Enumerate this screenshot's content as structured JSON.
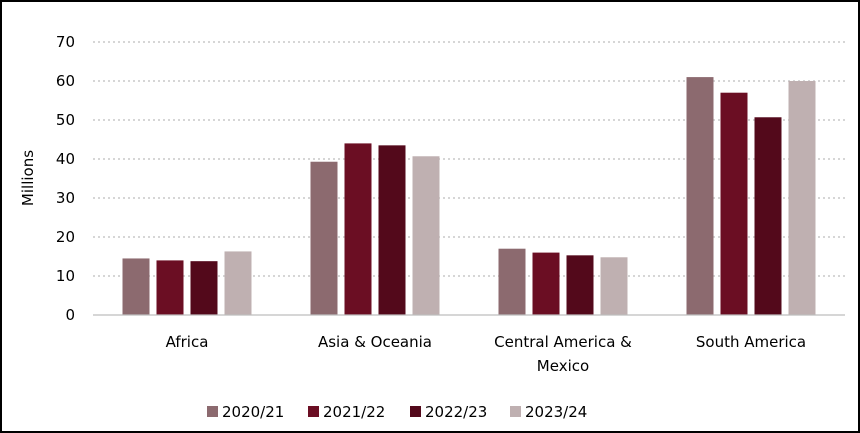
{
  "chart_data": {
    "type": "bar",
    "ylabel": "Millions",
    "ylim": [
      0,
      70
    ],
    "yticks": [
      "0",
      "10",
      "20",
      "30",
      "40",
      "50",
      "60",
      "70"
    ],
    "categories": [
      [
        "Africa"
      ],
      [
        "Asia & Oceania"
      ],
      [
        "Central America &",
        "Mexico"
      ],
      [
        "South America"
      ]
    ],
    "series": [
      {
        "name": "2020/21",
        "color": "#8c6a6f",
        "values": [
          14.5,
          39.3,
          17.0,
          61.0
        ]
      },
      {
        "name": "2021/22",
        "color": "#6b0e23",
        "values": [
          14.0,
          44.0,
          16.0,
          57.0
        ]
      },
      {
        "name": "2022/23",
        "color": "#53091b",
        "values": [
          13.8,
          43.5,
          15.3,
          50.7
        ]
      },
      {
        "name": "2023/24",
        "color": "#bfb0b1",
        "values": [
          16.3,
          40.7,
          14.8,
          60.0
        ]
      }
    ],
    "grid": "dotted-horizontal",
    "legend": "bottom-center"
  }
}
